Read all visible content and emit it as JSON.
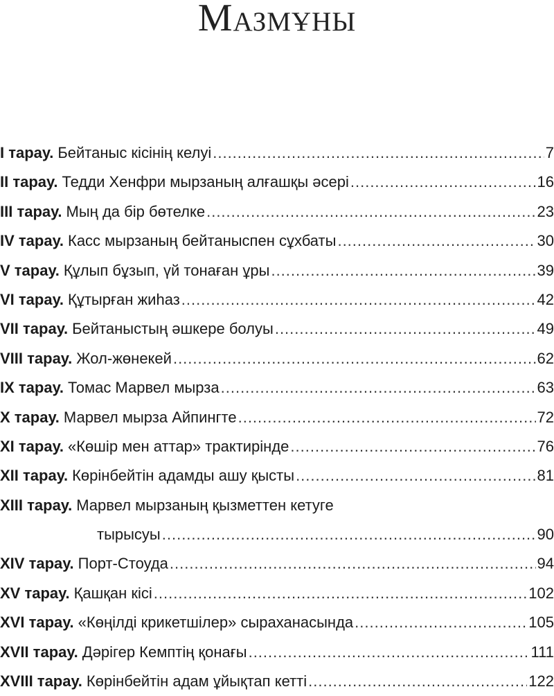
{
  "title": "Мазмұны",
  "entries": [
    {
      "label": "I тарау.",
      "title": "Бейтаныс кісінің келуі",
      "page": "7"
    },
    {
      "label": "II тарау.",
      "title": "Тедди Хенфри мырзаның алғашқы әсері",
      "page": "16"
    },
    {
      "label": "III тарау.",
      "title": "Мың да бір бөтелке",
      "page": "23"
    },
    {
      "label": "IV тарау.",
      "title": "Касс мырзаның бейтаныспен сұхбаты",
      "page": "30"
    },
    {
      "label": "V тарау.",
      "title": "Құлып бұзып, үй тонаған ұры",
      "page": "39"
    },
    {
      "label": "VI тарау.",
      "title": "Құтырған жиһаз",
      "page": "42"
    },
    {
      "label": "VII тарау.",
      "title": "Бейтаныстың әшкере болуы",
      "page": "49"
    },
    {
      "label": "VIII тарау.",
      "title": "Жол-жөнекей",
      "page": "62"
    },
    {
      "label": "IX тарау.",
      "title": "Томас Марвел мырза",
      "page": "63"
    },
    {
      "label": "X тарау.",
      "title": "Марвел мырза Айпингте",
      "page": "72"
    },
    {
      "label": "XI тарау.",
      "title": "«Көшір мен аттар» трактирінде",
      "page": "76"
    },
    {
      "label": "XII тарау.",
      "title": "Көрінбейтін адамды ашу қысты",
      "page": "81"
    },
    {
      "label": "XIII тарау.",
      "title": "Марвел мырзаның қызметтен кетуге",
      "title_cont": "тырысуы",
      "page": "90"
    },
    {
      "label": "XIV тарау.",
      "title": "Порт-Стоуда",
      "page": "94"
    },
    {
      "label": "XV тарау.",
      "title": "Қашқан кісі",
      "page": "102"
    },
    {
      "label": "XVI тарау.",
      "title": "«Көңілді крикетшілер» сыраханасында",
      "page": "105"
    },
    {
      "label": "XVII тарау.",
      "title": "Дәрігер Кемптің қонағы",
      "page": "111"
    },
    {
      "label": "XVIII тарау.",
      "title": "Көрінбейтін адам ұйықтап кетті",
      "page": "122"
    }
  ]
}
